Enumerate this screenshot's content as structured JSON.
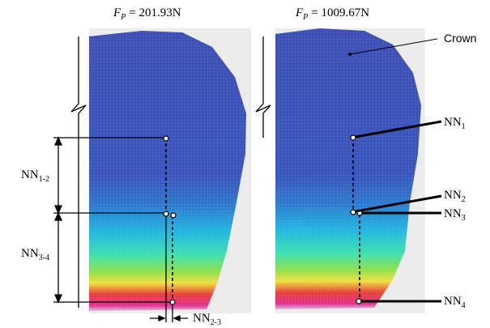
{
  "panels": [
    {
      "title": {
        "symbol": "F",
        "subscript": "P",
        "value": "= 201.93N"
      }
    },
    {
      "title": {
        "symbol": "F",
        "subscript": "P",
        "value": "= 1009.67N"
      }
    }
  ],
  "labels": {
    "crown": "Crown",
    "nn1": {
      "main": "NN",
      "sub": "1"
    },
    "nn2": {
      "main": "NN",
      "sub": "2"
    },
    "nn3": {
      "main": "NN",
      "sub": "3"
    },
    "nn4": {
      "main": "NN",
      "sub": "4"
    },
    "nn12": {
      "main": "NN",
      "sub": "1-2"
    },
    "nn34": {
      "main": "NN",
      "sub": "3-4"
    },
    "nn23": {
      "main": "NN",
      "sub": "2-3"
    }
  }
}
